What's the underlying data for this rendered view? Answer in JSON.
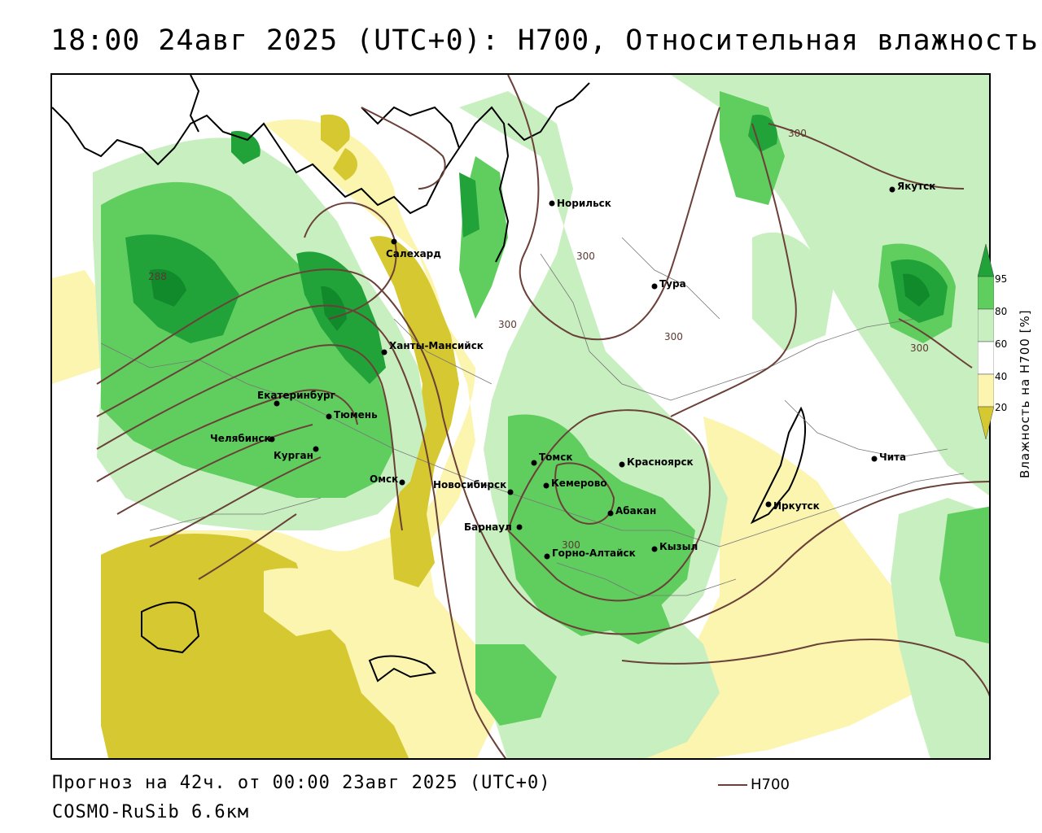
{
  "header": {
    "title": "18:00 24авг 2025 (UTC+0): H700, Относительная влажность"
  },
  "footer": {
    "forecast": "Прогноз на 42ч. от 00:00 23авг 2025 (UTC+0)",
    "model": "COSMO-RuSib 6.6км",
    "legend_label": "H700",
    "legend_color": "#6b4038"
  },
  "colorbar": {
    "title": "Влажность на H700 [%]",
    "ticks": [
      "95",
      "80",
      "60",
      "40",
      "20"
    ],
    "colors": {
      "very_dry": "#d6c830",
      "dry": "#fbf5b0",
      "neutral": "#ffffff",
      "moist": "#c8efc0",
      "wet": "#5fce5f",
      "very_wet": "#21a33a",
      "saturated": "#118a2c"
    }
  },
  "map": {
    "cities": [
      "Норильск",
      "Салехард",
      "Якутск",
      "Тура",
      "Ханты-Мансийск",
      "Екатеринбург",
      "Тюмень",
      "Челябинск",
      "Курган",
      "Омск",
      "Новосибирск",
      "Томск",
      "Кемерово",
      "Красноярск",
      "Абакан",
      "Барнаул",
      "Горно-Алтайск",
      "Кызыл",
      "Иркутск",
      "Чита"
    ],
    "contour_labels": [
      "288",
      "300",
      "300",
      "300",
      "300",
      "300",
      "300"
    ]
  }
}
